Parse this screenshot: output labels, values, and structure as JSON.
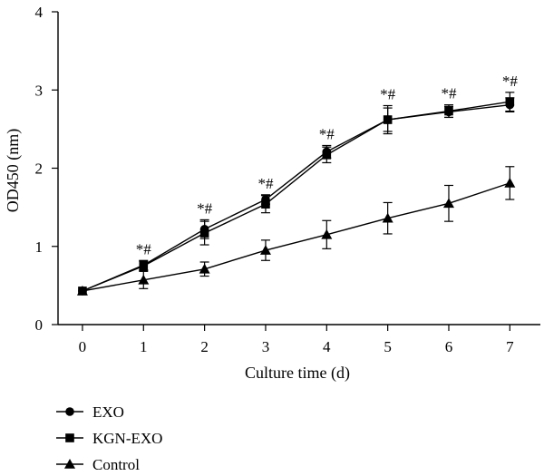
{
  "chart_data": {
    "type": "line",
    "xlabel": "Culture time (d)",
    "ylabel": "OD450 (nm)",
    "x": [
      0,
      1,
      2,
      3,
      4,
      5,
      6,
      7
    ],
    "xlim": [
      -0.4,
      7.5
    ],
    "ylim": [
      0,
      4
    ],
    "xticks": [
      0,
      1,
      2,
      3,
      4,
      5,
      6,
      7
    ],
    "yticks": [
      0,
      1,
      2,
      3,
      4
    ],
    "legend_position": "bottom-left",
    "series": [
      {
        "name": "EXO",
        "marker": "circle",
        "values": [
          0.43,
          0.76,
          1.22,
          1.6,
          2.21,
          2.62,
          2.72,
          2.81
        ],
        "errors": [
          0.02,
          0.06,
          0.12,
          0.06,
          0.08,
          0.15,
          0.07,
          0.09
        ]
      },
      {
        "name": "KGN-EXO",
        "marker": "square",
        "values": [
          0.43,
          0.75,
          1.17,
          1.54,
          2.17,
          2.62,
          2.73,
          2.85
        ],
        "errors": [
          0.02,
          0.06,
          0.15,
          0.11,
          0.1,
          0.18,
          0.08,
          0.12
        ]
      },
      {
        "name": "Control",
        "marker": "triangle",
        "values": [
          0.43,
          0.57,
          0.71,
          0.95,
          1.15,
          1.36,
          1.55,
          1.81
        ],
        "errors": [
          0.02,
          0.11,
          0.09,
          0.13,
          0.18,
          0.2,
          0.23,
          0.21
        ]
      }
    ],
    "annotations": {
      "label": "*#",
      "x": [
        1,
        2,
        3,
        4,
        5,
        6,
        7
      ]
    }
  }
}
